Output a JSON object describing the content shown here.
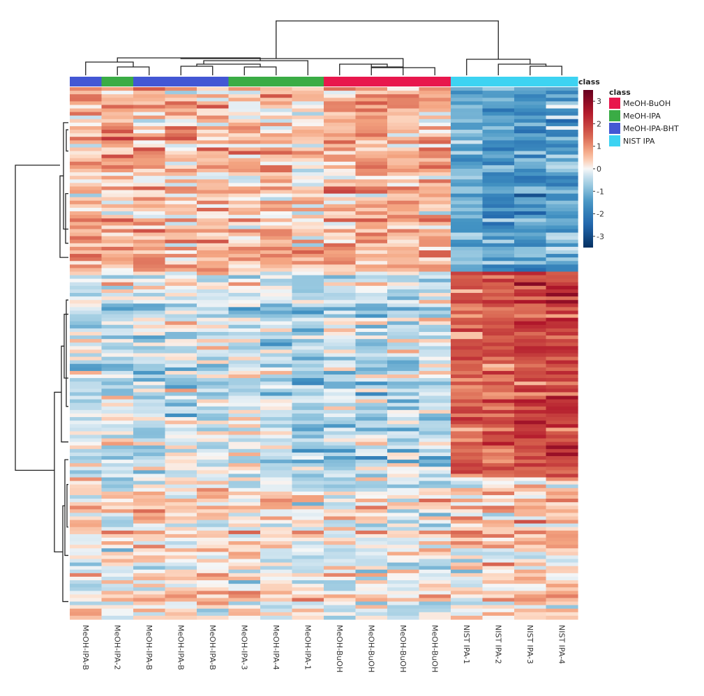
{
  "chart_data": {
    "type": "heatmap",
    "title": "",
    "columns": [
      "MeOH-IPA-B",
      "MeOH-IPA-2",
      "MeOH-IPA-B",
      "MeOH-IPA-B",
      "MeOH-IPA-B",
      "MeOH-IPA-3",
      "MeOH-IPA-4",
      "MeOH-IPA-1",
      "MeOH-BuOH",
      "MeOH-BuOH",
      "MeOH-BuOH",
      "MeOH-BuOH",
      "NIST IPA-1",
      "NIST IPA-2",
      "NIST IPA-3",
      "NIST IPA-4"
    ],
    "column_classes": [
      "MeOH-IPA-BHT",
      "MeOH-IPA",
      "MeOH-IPA-BHT",
      "MeOH-IPA-BHT",
      "MeOH-IPA-BHT",
      "MeOH-IPA",
      "MeOH-IPA",
      "MeOH-IPA",
      "MeOH-BuOH",
      "MeOH-BuOH",
      "MeOH-BuOH",
      "MeOH-BuOH",
      "NIST IPA",
      "NIST IPA",
      "NIST IPA",
      "NIST IPA"
    ],
    "row_count": 150,
    "row_blocks": [
      {
        "rows": 52,
        "means": [
          0.6,
          0.7,
          0.6,
          0.6,
          0.6,
          0.5,
          0.5,
          0.3,
          0.6,
          0.7,
          0.7,
          0.6,
          -1.2,
          -1.4,
          -1.5,
          -1.3
        ]
      },
      {
        "rows": 58,
        "means": [
          -0.4,
          -0.3,
          -0.4,
          -0.3,
          -0.3,
          -0.3,
          -0.3,
          -0.6,
          -0.5,
          -0.6,
          -0.5,
          -0.4,
          1.4,
          1.6,
          1.9,
          1.9
        ]
      },
      {
        "rows": 40,
        "means": [
          0.2,
          0.1,
          0.2,
          0.2,
          0.2,
          0.1,
          0.1,
          0.0,
          0.0,
          0.0,
          -0.1,
          0.1,
          0.3,
          0.5,
          0.5,
          0.4
        ]
      }
    ],
    "value_range": [
      -3.5,
      3.5
    ],
    "colorbar_ticks": [
      "3",
      "2",
      "1",
      "0",
      "-1",
      "-2",
      "-3"
    ],
    "colorbar_tick_values": [
      3,
      2,
      1,
      0,
      -1,
      -2,
      -3
    ],
    "colorbar_title": "class",
    "legend": {
      "title": "class",
      "placement": "right",
      "entries": [
        {
          "label": "MeOH-BuOH",
          "color": "#e8174d"
        },
        {
          "label": "MeOH-IPA",
          "color": "#3aac45"
        },
        {
          "label": "MeOH-IPA-BHT",
          "color": "#4357d4"
        },
        {
          "label": "NIST IPA",
          "color": "#3dd3f2"
        }
      ]
    },
    "colors": {
      "low": "#053061",
      "mid": "#f7f7f7",
      "high": "#67001f"
    },
    "dendrogram_top": true,
    "dendrogram_left": true
  }
}
